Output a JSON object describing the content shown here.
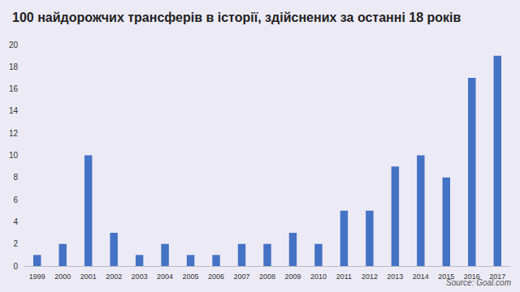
{
  "chart_data": {
    "type": "bar",
    "title": "100 найдорожчих трансферів в історії, здійснених за останні 18 років",
    "source": "Source: Goal.com",
    "categories": [
      "1999",
      "2000",
      "2001",
      "2002",
      "2003",
      "2004",
      "2005",
      "2006",
      "2007",
      "2008",
      "2009",
      "2010",
      "2011",
      "2012",
      "2013",
      "2014",
      "2015",
      "2016",
      "2017"
    ],
    "values": [
      1,
      2,
      10,
      3,
      1,
      2,
      1,
      1,
      2,
      2,
      3,
      2,
      5,
      5,
      9,
      10,
      8,
      17,
      19
    ],
    "color": "#4472c4",
    "ylim": [
      0,
      20
    ],
    "yticks": [
      0,
      2,
      4,
      6,
      8,
      10,
      12,
      14,
      16,
      18,
      20
    ],
    "grid": false
  }
}
